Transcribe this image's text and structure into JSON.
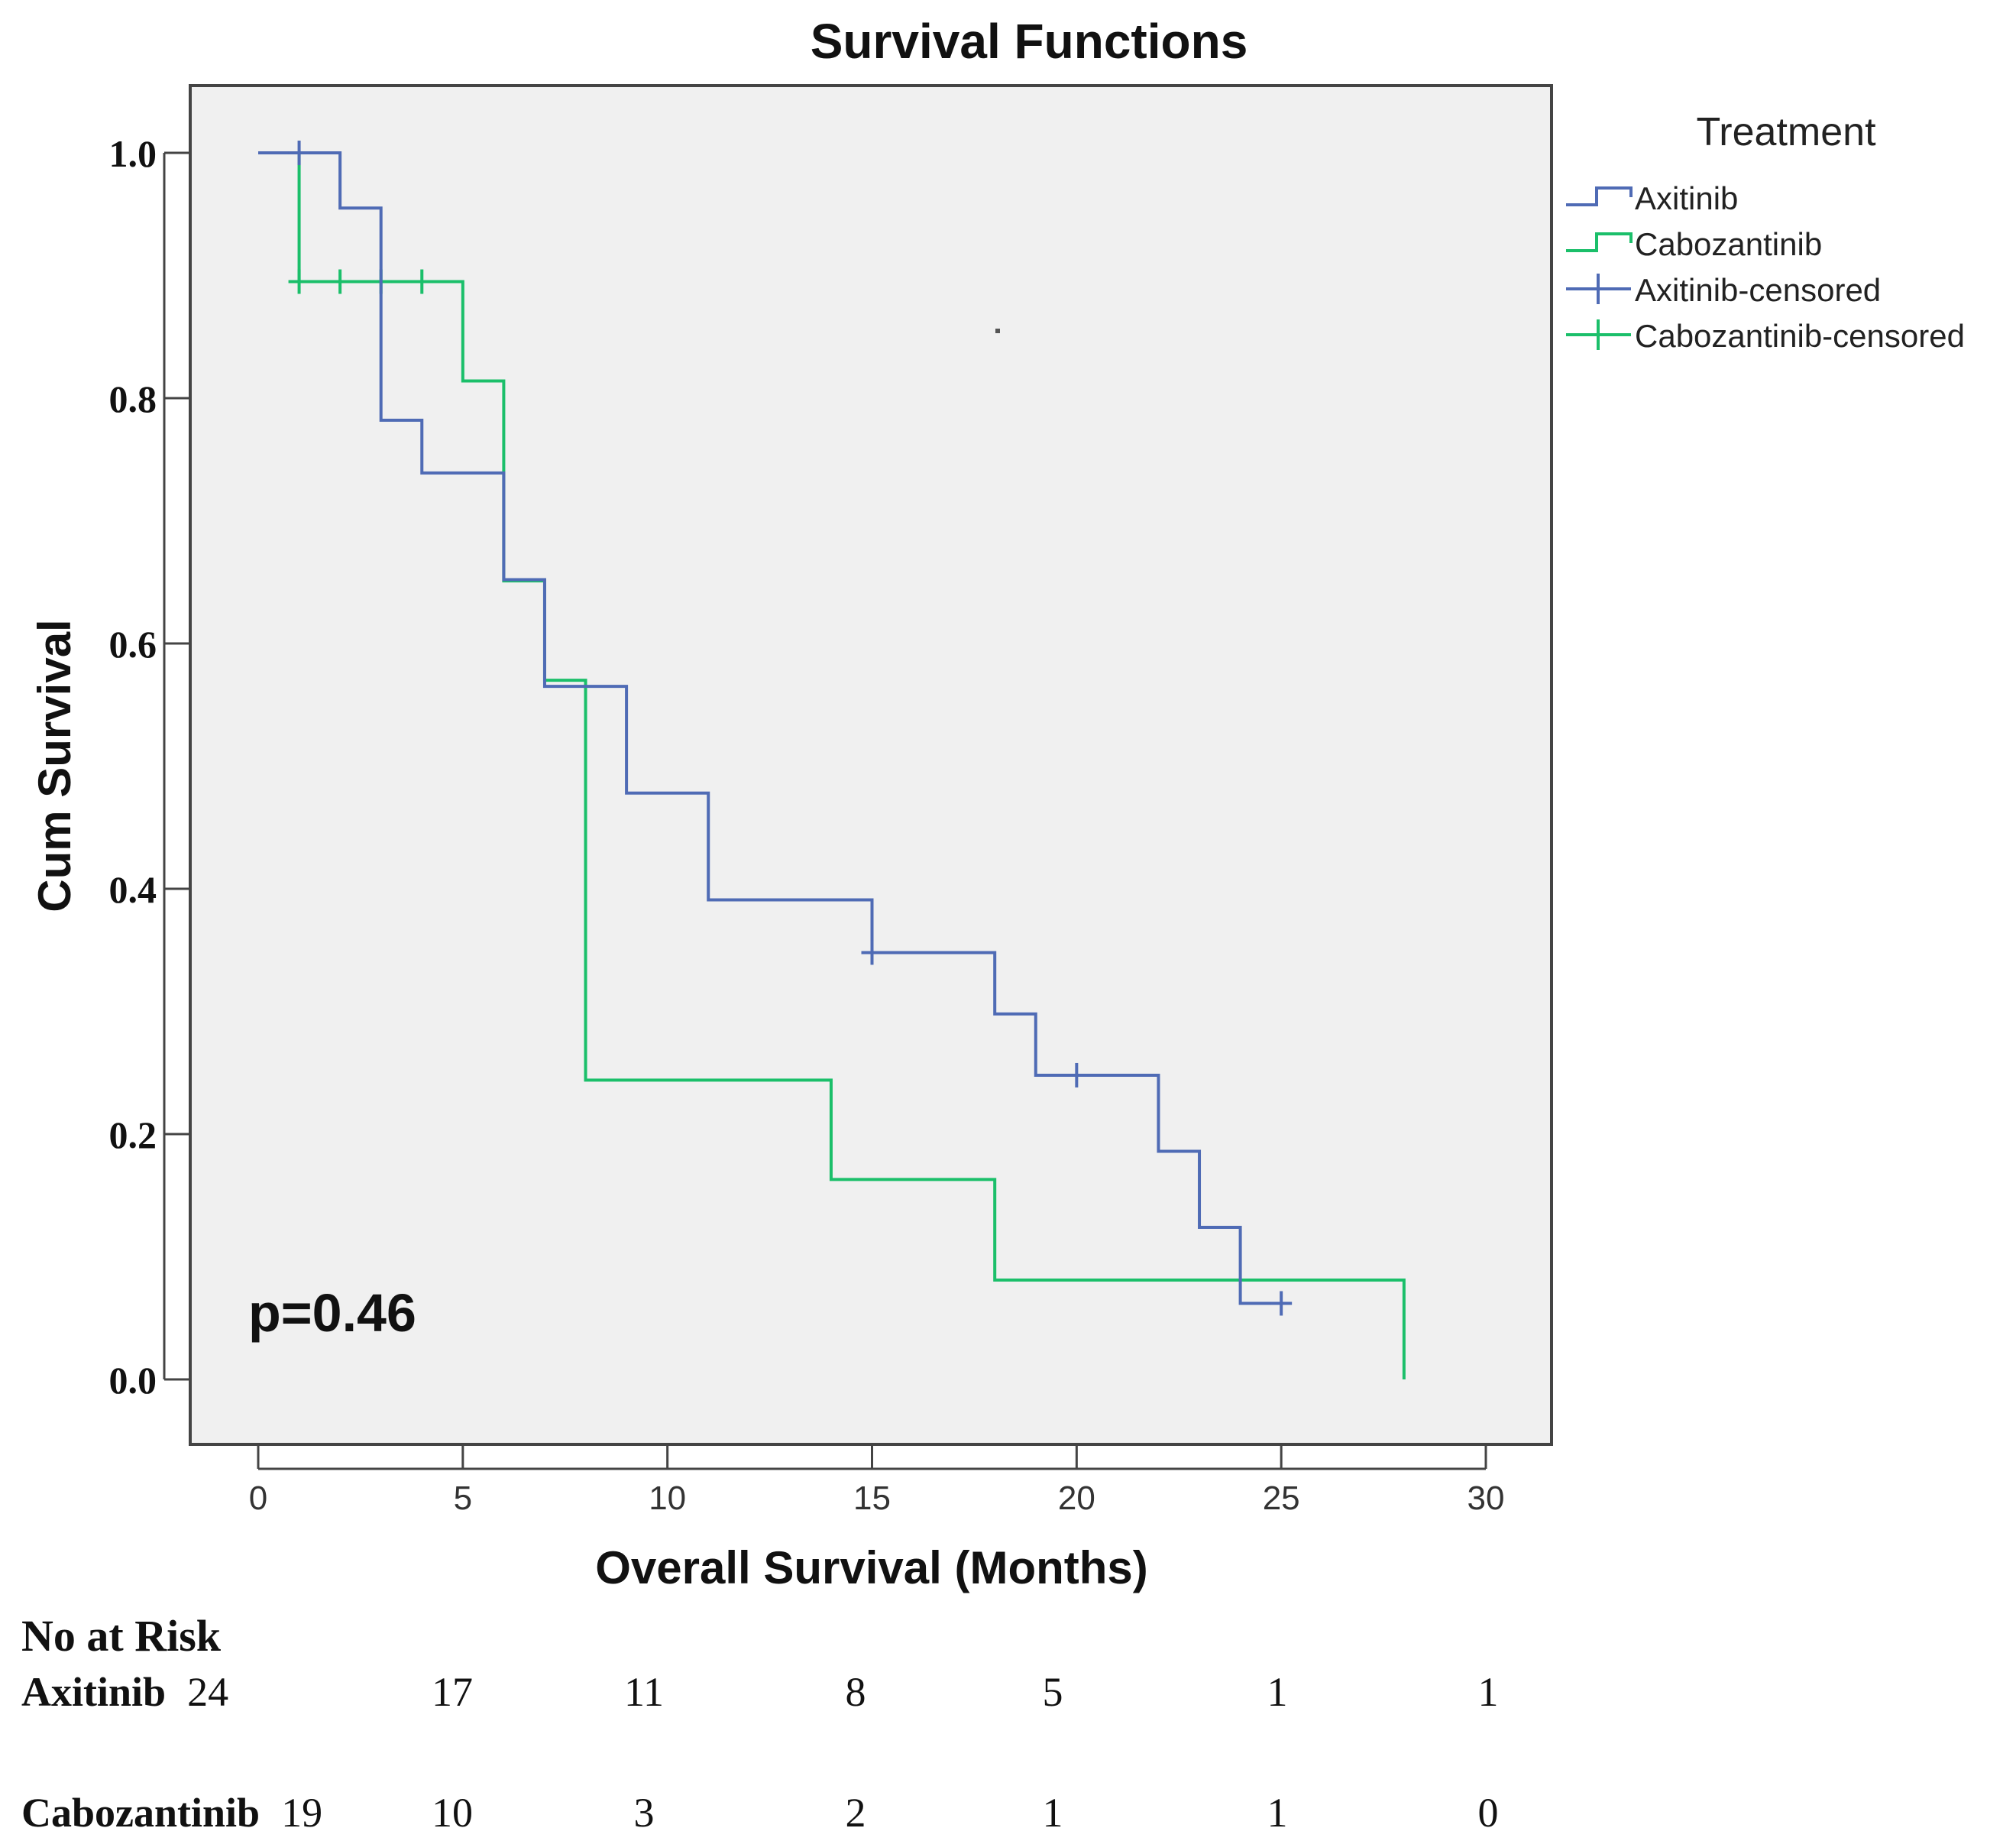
{
  "chart_data": {
    "type": "line",
    "subtype": "kaplan-meier step",
    "title": "Survival Functions",
    "xlabel": "Overall Survival (Months)",
    "ylabel": "Cum Survival",
    "xlim": [
      0,
      30
    ],
    "ylim": [
      0,
      1
    ],
    "xticks": [
      "0",
      "5",
      "10",
      "15",
      "20",
      "25",
      "30"
    ],
    "yticks": [
      "0.0",
      "0.2",
      "0.4",
      "0.6",
      "0.8",
      "1.0"
    ],
    "legend_title": "Treatment",
    "legend_position": "right",
    "annotation": "p=0.46",
    "series": [
      {
        "name": "Axitinib",
        "color": "#4f6bb5",
        "steps": [
          [
            0,
            1.0
          ],
          [
            2,
            0.955
          ],
          [
            3,
            0.782
          ],
          [
            4,
            0.739
          ],
          [
            6,
            0.652
          ],
          [
            7,
            0.565
          ],
          [
            9,
            0.478
          ],
          [
            11,
            0.391
          ],
          [
            15,
            0.348
          ],
          [
            18,
            0.298
          ],
          [
            19,
            0.248
          ],
          [
            22,
            0.186
          ],
          [
            23,
            0.124
          ],
          [
            24,
            0.062
          ],
          [
            25,
            0.062
          ]
        ],
        "censored": [
          [
            1,
            1.0
          ],
          [
            15,
            0.348
          ],
          [
            20,
            0.248
          ],
          [
            25,
            0.062
          ]
        ]
      },
      {
        "name": "Cabozantinib",
        "color": "#1bbf6a",
        "steps": [
          [
            0,
            1.0
          ],
          [
            1,
            0.895
          ],
          [
            5,
            0.814
          ],
          [
            6,
            0.651
          ],
          [
            7,
            0.57
          ],
          [
            8,
            0.244
          ],
          [
            14,
            0.163
          ],
          [
            18,
            0.081
          ],
          [
            28,
            0.0
          ]
        ],
        "censored": [
          [
            1,
            0.895
          ],
          [
            2,
            0.895
          ],
          [
            3,
            0.895
          ],
          [
            4,
            0.895
          ]
        ]
      }
    ],
    "legend_entries": [
      "Axitinib",
      "Cabozantinib",
      "Axitinib-censored",
      "Cabozantinib-censored"
    ]
  },
  "risk_table": {
    "header": "No at Risk",
    "rows": [
      {
        "label": "Axitinib",
        "first": "24",
        "values": [
          "17",
          "11",
          "8",
          "5",
          "1",
          "1"
        ]
      },
      {
        "label": "Cabozantinib",
        "first": "19",
        "values": [
          "10",
          "3",
          "2",
          "1",
          "1",
          "0"
        ]
      }
    ]
  }
}
